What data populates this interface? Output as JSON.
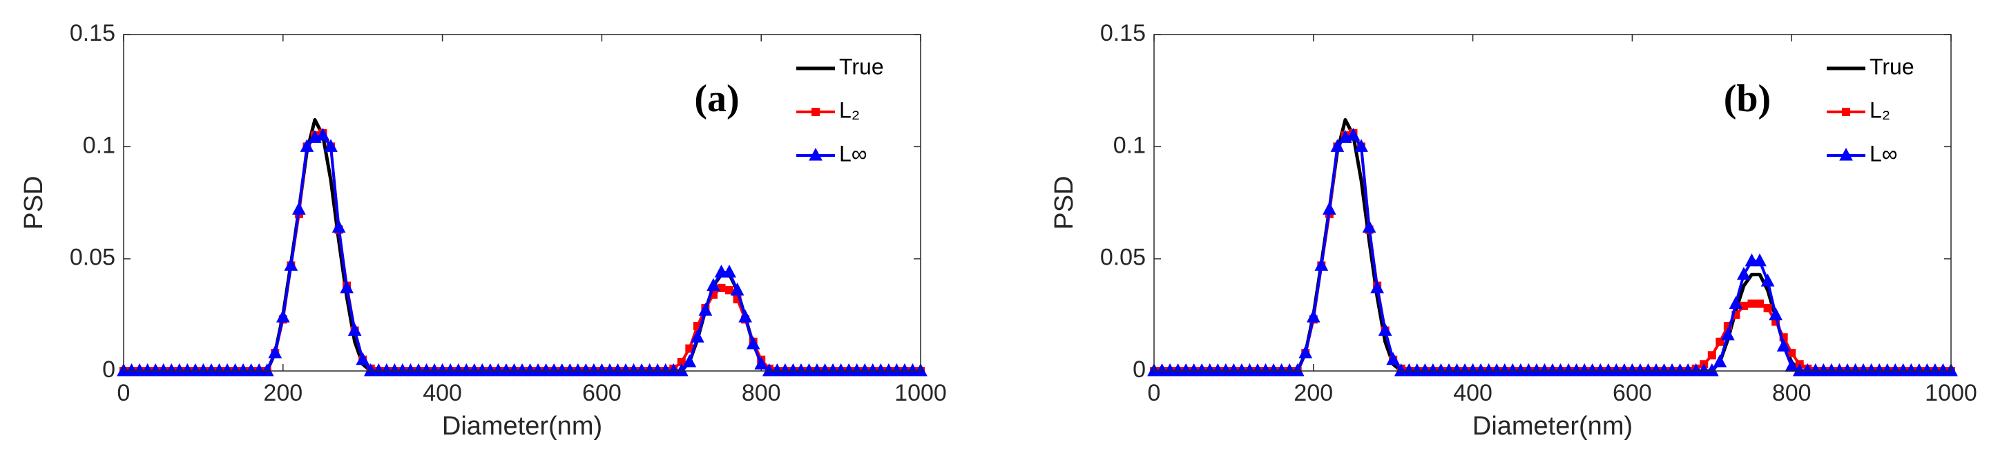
{
  "chart_data": [
    {
      "type": "line",
      "annotation": "(a)",
      "xlabel": "Diameter(nm)",
      "ylabel": "PSD",
      "legend": "upper right",
      "xlim": [
        0,
        1000
      ],
      "ylim": [
        0,
        0.15
      ],
      "xticks": [
        0,
        200,
        400,
        600,
        800,
        1000
      ],
      "yticks": [
        0,
        0.05,
        0.1,
        0.15
      ],
      "x": [
        0,
        10,
        20,
        30,
        40,
        50,
        60,
        70,
        80,
        90,
        100,
        110,
        120,
        130,
        140,
        150,
        160,
        170,
        180,
        190,
        200,
        210,
        220,
        230,
        240,
        250,
        260,
        270,
        280,
        290,
        300,
        310,
        320,
        330,
        340,
        350,
        360,
        370,
        380,
        390,
        400,
        410,
        420,
        430,
        440,
        450,
        460,
        470,
        480,
        490,
        500,
        510,
        520,
        530,
        540,
        550,
        560,
        570,
        580,
        590,
        600,
        610,
        620,
        630,
        640,
        650,
        660,
        670,
        680,
        690,
        700,
        710,
        720,
        730,
        740,
        750,
        760,
        770,
        780,
        790,
        800,
        810,
        820,
        830,
        840,
        850,
        860,
        870,
        880,
        890,
        900,
        910,
        920,
        930,
        940,
        950,
        960,
        970,
        980,
        990,
        1000
      ],
      "series": [
        {
          "name": "True",
          "color": "#000000",
          "marker": "none",
          "values": [
            0,
            0,
            0,
            0,
            0,
            0,
            0,
            0,
            0,
            0,
            0,
            0,
            0,
            0,
            0,
            0,
            0,
            0,
            0,
            0.008,
            0.025,
            0.048,
            0.072,
            0.098,
            0.112,
            0.105,
            0.085,
            0.058,
            0.033,
            0.013,
            0.003,
            0,
            0,
            0,
            0,
            0,
            0,
            0,
            0,
            0,
            0,
            0,
            0,
            0,
            0,
            0,
            0,
            0,
            0,
            0,
            0,
            0,
            0,
            0,
            0,
            0,
            0,
            0,
            0,
            0,
            0,
            0,
            0,
            0,
            0,
            0,
            0,
            0,
            0,
            0,
            0,
            0.004,
            0.014,
            0.027,
            0.038,
            0.043,
            0.043,
            0.036,
            0.024,
            0.012,
            0.004,
            0,
            0,
            0,
            0,
            0,
            0,
            0,
            0,
            0,
            0,
            0,
            0,
            0,
            0,
            0,
            0,
            0,
            0,
            0,
            0
          ]
        },
        {
          "name": "L₂",
          "color": "#ff0000",
          "marker": "square",
          "values": [
            0,
            0,
            0,
            0,
            0,
            0,
            0,
            0,
            0,
            0,
            0,
            0,
            0,
            0,
            0,
            0,
            0,
            0,
            0,
            0.008,
            0.023,
            0.047,
            0.07,
            0.1,
            0.105,
            0.106,
            0.1,
            0.063,
            0.038,
            0.018,
            0.005,
            0.001,
            0,
            0,
            0,
            0,
            0,
            0,
            0,
            0,
            0,
            0,
            0,
            0,
            0,
            0,
            0,
            0,
            0,
            0,
            0,
            0,
            0,
            0,
            0,
            0,
            0,
            0,
            0,
            0,
            0,
            0,
            0,
            0,
            0,
            0,
            0,
            0,
            0,
            0.001,
            0.004,
            0.01,
            0.02,
            0.028,
            0.034,
            0.037,
            0.036,
            0.032,
            0.023,
            0.013,
            0.005,
            0.001,
            0,
            0,
            0,
            0,
            0,
            0,
            0,
            0,
            0,
            0,
            0,
            0,
            0,
            0,
            0,
            0,
            0,
            0,
            0
          ]
        },
        {
          "name": "L∞",
          "color": "#0000ff",
          "marker": "triangle",
          "values": [
            0,
            0,
            0,
            0,
            0,
            0,
            0,
            0,
            0,
            0,
            0,
            0,
            0,
            0,
            0,
            0,
            0,
            0,
            0,
            0.008,
            0.024,
            0.047,
            0.072,
            0.1,
            0.104,
            0.105,
            0.1,
            0.064,
            0.037,
            0.018,
            0.005,
            0,
            0,
            0,
            0,
            0,
            0,
            0,
            0,
            0,
            0,
            0,
            0,
            0,
            0,
            0,
            0,
            0,
            0,
            0,
            0,
            0,
            0,
            0,
            0,
            0,
            0,
            0,
            0,
            0,
            0,
            0,
            0,
            0,
            0,
            0,
            0,
            0,
            0,
            0,
            0,
            0.004,
            0.015,
            0.027,
            0.038,
            0.044,
            0.044,
            0.036,
            0.024,
            0.012,
            0.003,
            0,
            0,
            0,
            0,
            0,
            0,
            0,
            0,
            0,
            0,
            0,
            0,
            0,
            0,
            0,
            0,
            0,
            0,
            0,
            0
          ]
        }
      ]
    },
    {
      "type": "line",
      "annotation": "(b)",
      "xlabel": "Diameter(nm)",
      "ylabel": "PSD",
      "legend": "upper right",
      "xlim": [
        0,
        1000
      ],
      "ylim": [
        0,
        0.15
      ],
      "xticks": [
        0,
        200,
        400,
        600,
        800,
        1000
      ],
      "yticks": [
        0,
        0.05,
        0.1,
        0.15
      ],
      "x": [
        0,
        10,
        20,
        30,
        40,
        50,
        60,
        70,
        80,
        90,
        100,
        110,
        120,
        130,
        140,
        150,
        160,
        170,
        180,
        190,
        200,
        210,
        220,
        230,
        240,
        250,
        260,
        270,
        280,
        290,
        300,
        310,
        320,
        330,
        340,
        350,
        360,
        370,
        380,
        390,
        400,
        410,
        420,
        430,
        440,
        450,
        460,
        470,
        480,
        490,
        500,
        510,
        520,
        530,
        540,
        550,
        560,
        570,
        580,
        590,
        600,
        610,
        620,
        630,
        640,
        650,
        660,
        670,
        680,
        690,
        700,
        710,
        720,
        730,
        740,
        750,
        760,
        770,
        780,
        790,
        800,
        810,
        820,
        830,
        840,
        850,
        860,
        870,
        880,
        890,
        900,
        910,
        920,
        930,
        940,
        950,
        960,
        970,
        980,
        990,
        1000
      ],
      "series": [
        {
          "name": "True",
          "color": "#000000",
          "marker": "none",
          "values": [
            0,
            0,
            0,
            0,
            0,
            0,
            0,
            0,
            0,
            0,
            0,
            0,
            0,
            0,
            0,
            0,
            0,
            0,
            0,
            0.008,
            0.025,
            0.048,
            0.072,
            0.098,
            0.112,
            0.105,
            0.085,
            0.058,
            0.033,
            0.013,
            0.003,
            0,
            0,
            0,
            0,
            0,
            0,
            0,
            0,
            0,
            0,
            0,
            0,
            0,
            0,
            0,
            0,
            0,
            0,
            0,
            0,
            0,
            0,
            0,
            0,
            0,
            0,
            0,
            0,
            0,
            0,
            0,
            0,
            0,
            0,
            0,
            0,
            0,
            0,
            0,
            0,
            0.004,
            0.014,
            0.027,
            0.038,
            0.043,
            0.043,
            0.036,
            0.024,
            0.012,
            0.004,
            0,
            0,
            0,
            0,
            0,
            0,
            0,
            0,
            0,
            0,
            0,
            0,
            0,
            0,
            0,
            0,
            0,
            0,
            0,
            0
          ]
        },
        {
          "name": "L₂",
          "color": "#ff0000",
          "marker": "square",
          "values": [
            0,
            0,
            0,
            0,
            0,
            0,
            0,
            0,
            0,
            0,
            0,
            0,
            0,
            0,
            0,
            0,
            0,
            0,
            0,
            0.008,
            0.023,
            0.047,
            0.07,
            0.1,
            0.105,
            0.106,
            0.1,
            0.063,
            0.038,
            0.018,
            0.005,
            0.001,
            0,
            0,
            0,
            0,
            0,
            0,
            0,
            0,
            0,
            0,
            0,
            0,
            0,
            0,
            0,
            0,
            0,
            0,
            0,
            0,
            0,
            0,
            0,
            0,
            0,
            0,
            0,
            0,
            0,
            0,
            0,
            0,
            0,
            0,
            0,
            0,
            0.001,
            0.003,
            0.007,
            0.013,
            0.02,
            0.025,
            0.029,
            0.03,
            0.03,
            0.028,
            0.022,
            0.015,
            0.008,
            0.003,
            0.001,
            0,
            0,
            0,
            0,
            0,
            0,
            0,
            0,
            0,
            0,
            0,
            0,
            0,
            0,
            0,
            0,
            0,
            0
          ]
        },
        {
          "name": "L∞",
          "color": "#0000ff",
          "marker": "triangle",
          "values": [
            0,
            0,
            0,
            0,
            0,
            0,
            0,
            0,
            0,
            0,
            0,
            0,
            0,
            0,
            0,
            0,
            0,
            0,
            0,
            0.008,
            0.024,
            0.047,
            0.072,
            0.1,
            0.104,
            0.105,
            0.1,
            0.064,
            0.037,
            0.018,
            0.005,
            0,
            0,
            0,
            0,
            0,
            0,
            0,
            0,
            0,
            0,
            0,
            0,
            0,
            0,
            0,
            0,
            0,
            0,
            0,
            0,
            0,
            0,
            0,
            0,
            0,
            0,
            0,
            0,
            0,
            0,
            0,
            0,
            0,
            0,
            0,
            0,
            0,
            0,
            0,
            0,
            0.004,
            0.016,
            0.03,
            0.043,
            0.049,
            0.049,
            0.04,
            0.025,
            0.011,
            0.002,
            0,
            0,
            0,
            0,
            0,
            0,
            0,
            0,
            0,
            0,
            0,
            0,
            0,
            0,
            0,
            0,
            0,
            0,
            0,
            0
          ]
        }
      ]
    }
  ]
}
